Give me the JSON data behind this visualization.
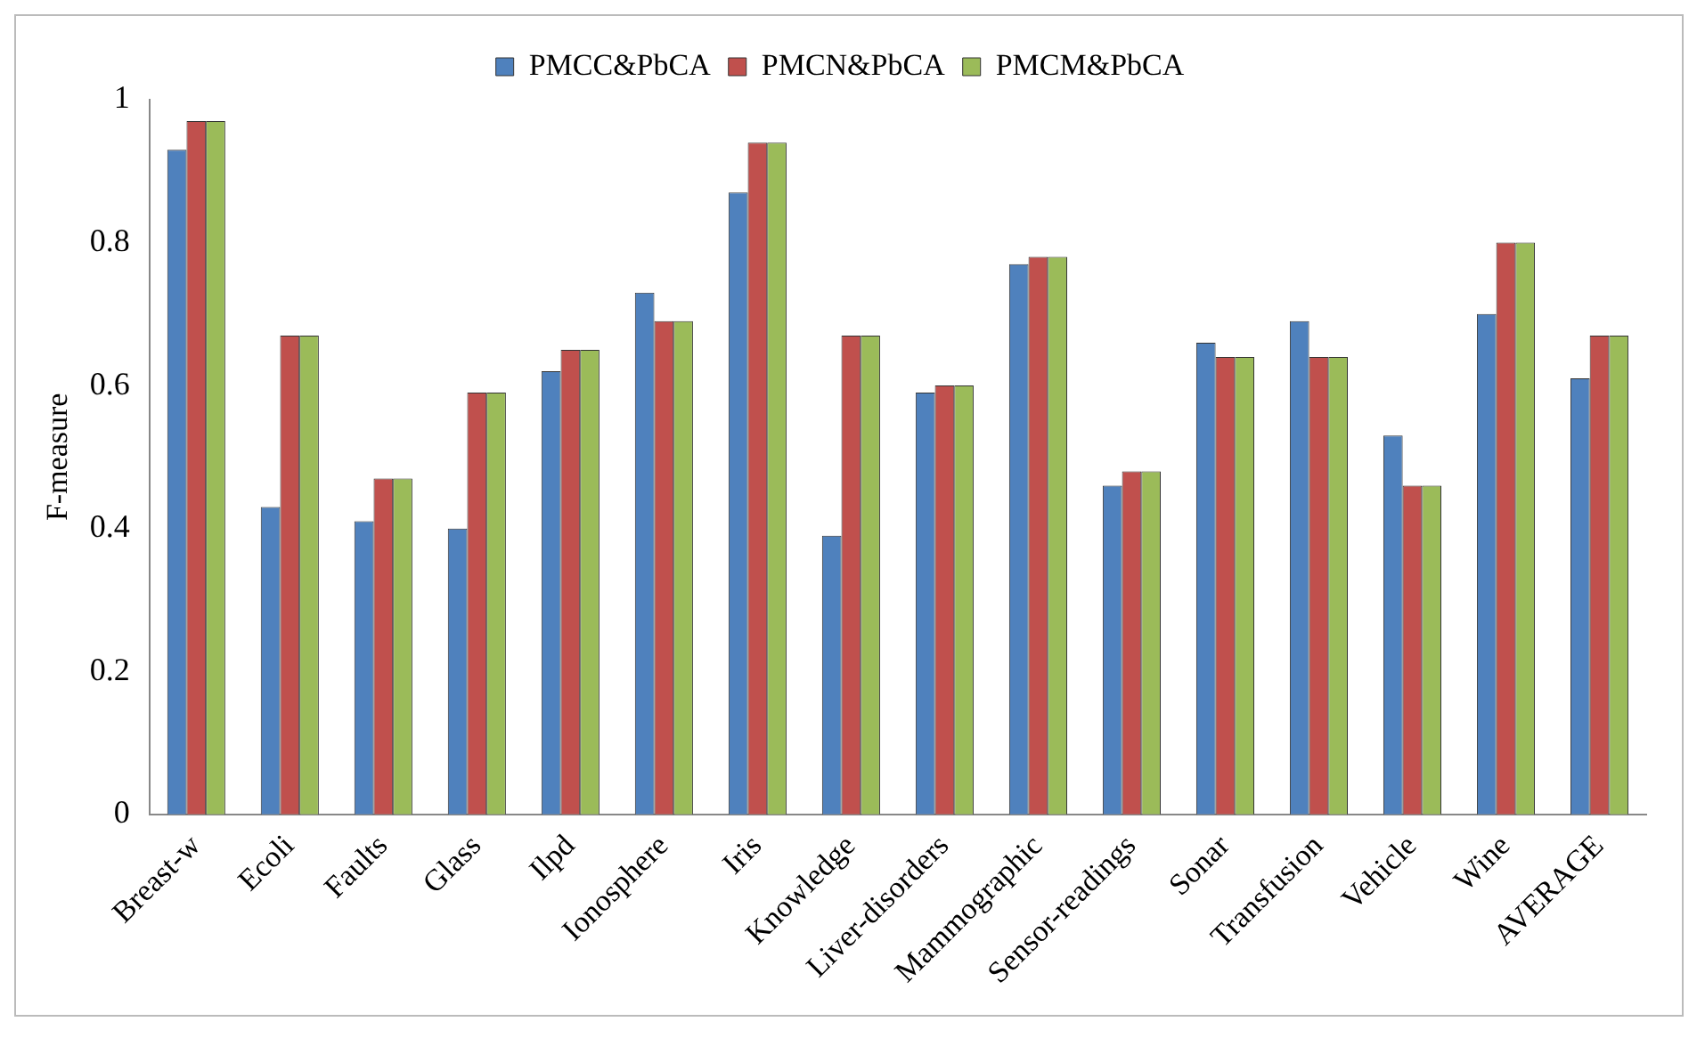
{
  "chart_data": {
    "type": "bar",
    "ylabel": "F-measure",
    "categories": [
      "Breast-w",
      "Ecoli",
      "Faults",
      "Glass",
      "Ilpd",
      "Ionosphere",
      "Iris",
      "Knowledge",
      "Liver-disorders",
      "Mammographic",
      "Sensor-readings",
      "Sonar",
      "Transfusion",
      "Vehicle",
      "Wine",
      "AVERAGE"
    ],
    "series": [
      {
        "name": "PMCC&PbCA",
        "color": "#4f81bd",
        "values": [
          0.93,
          0.43,
          0.41,
          0.4,
          0.62,
          0.73,
          0.87,
          0.39,
          0.59,
          0.77,
          0.46,
          0.66,
          0.69,
          0.53,
          0.7,
          0.61
        ]
      },
      {
        "name": "PMCN&PbCA",
        "color": "#c0504d",
        "values": [
          0.97,
          0.67,
          0.47,
          0.59,
          0.65,
          0.69,
          0.94,
          0.67,
          0.6,
          0.78,
          0.48,
          0.64,
          0.64,
          0.46,
          0.8,
          0.67
        ]
      },
      {
        "name": "PMCM&PbCA",
        "color": "#9bbb59",
        "values": [
          0.97,
          0.67,
          0.47,
          0.59,
          0.65,
          0.69,
          0.94,
          0.67,
          0.6,
          0.78,
          0.48,
          0.64,
          0.64,
          0.46,
          0.8,
          0.67
        ]
      }
    ],
    "ylim": [
      0,
      1
    ],
    "yticks": [
      0,
      0.2,
      0.4,
      0.6,
      0.8,
      1
    ],
    "grid": false,
    "legend": "top"
  }
}
